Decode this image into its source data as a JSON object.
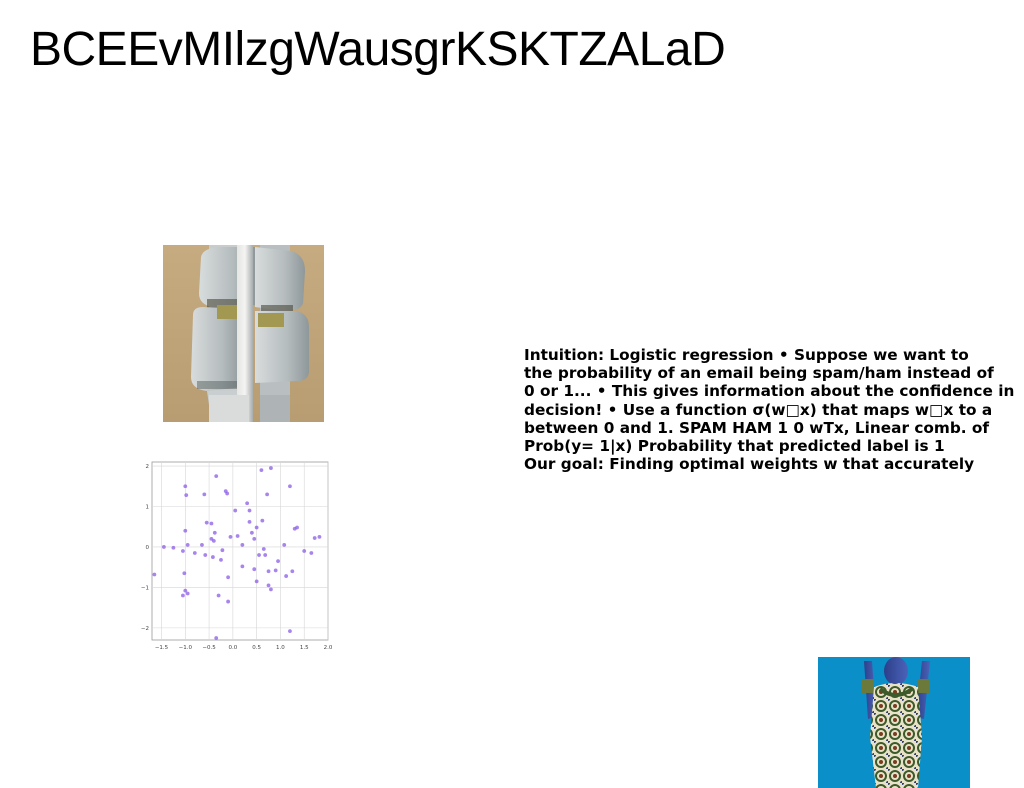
{
  "title": "BCEEvMIlzgWausgrKSKTZALaD",
  "text_block": {
    "lines": [
      "Intuition: Logistic regression • Suppose we want to",
      "the probability of an email being spam/ham instead of",
      "0 or 1... • This gives information about the confidence in",
      "decision! • Use a function σ(w□x) that maps w□x to a",
      "between 0 and 1. SPAM HAM 1 0 wTx, Linear comb. of",
      "Prob(y= 1|x) Probability that predicted label is 1",
      "Our goal: Finding optimal weights w that accurately"
    ]
  },
  "scatter_ticks": {
    "x": [
      "−1.5",
      "−1.0",
      "−0.5",
      "0.0",
      "0.5",
      "1.0",
      "1.5",
      "2.0"
    ],
    "y": [
      "2",
      "1",
      "0",
      "−1",
      "−2"
    ]
  },
  "chart_data": {
    "type": "scatter",
    "xlim": [
      -1.7,
      2.0
    ],
    "ylim": [
      -2.3,
      2.1
    ],
    "grid": true,
    "color": "#8a5ce6",
    "points": [
      [
        -1.65,
        -0.68
      ],
      [
        -1.45,
        0.0
      ],
      [
        -1.25,
        -0.02
      ],
      [
        -1.05,
        -0.1
      ],
      [
        -1.0,
        1.5
      ],
      [
        -0.98,
        1.28
      ],
      [
        -1.0,
        0.4
      ],
      [
        -0.95,
        0.05
      ],
      [
        -1.02,
        -0.65
      ],
      [
        -1.0,
        -1.08
      ],
      [
        -0.95,
        -1.15
      ],
      [
        -1.05,
        -1.2
      ],
      [
        -0.8,
        -0.15
      ],
      [
        -0.65,
        0.05
      ],
      [
        -0.6,
        1.3
      ],
      [
        -0.55,
        0.6
      ],
      [
        -0.58,
        -0.2
      ],
      [
        -0.45,
        0.58
      ],
      [
        -0.45,
        0.2
      ],
      [
        -0.4,
        0.15
      ],
      [
        -0.42,
        -0.25
      ],
      [
        -0.38,
        0.35
      ],
      [
        -0.35,
        1.75
      ],
      [
        -0.3,
        -1.2
      ],
      [
        -0.25,
        -0.32
      ],
      [
        -0.22,
        -0.08
      ],
      [
        -0.15,
        1.38
      ],
      [
        -0.12,
        1.32
      ],
      [
        -0.1,
        -0.75
      ],
      [
        -0.05,
        0.25
      ],
      [
        -0.1,
        -1.35
      ],
      [
        0.1,
        0.27
      ],
      [
        0.05,
        0.9
      ],
      [
        0.2,
        -0.48
      ],
      [
        0.3,
        1.08
      ],
      [
        0.35,
        0.9
      ],
      [
        0.35,
        0.62
      ],
      [
        0.4,
        0.35
      ],
      [
        0.45,
        0.2
      ],
      [
        0.5,
        -0.85
      ],
      [
        0.45,
        -0.55
      ],
      [
        0.5,
        0.48
      ],
      [
        0.6,
        1.9
      ],
      [
        0.62,
        0.65
      ],
      [
        0.65,
        -0.05
      ],
      [
        0.68,
        -0.2
      ],
      [
        0.72,
        1.3
      ],
      [
        0.75,
        -0.95
      ],
      [
        0.8,
        -1.05
      ],
      [
        0.8,
        1.95
      ],
      [
        0.9,
        -0.58
      ],
      [
        0.95,
        -0.35
      ],
      [
        1.08,
        0.05
      ],
      [
        1.12,
        -0.72
      ],
      [
        1.2,
        1.5
      ],
      [
        1.25,
        -0.6
      ],
      [
        1.3,
        0.45
      ],
      [
        1.35,
        0.48
      ],
      [
        1.5,
        -0.1
      ],
      [
        1.65,
        -0.15
      ],
      [
        1.72,
        0.22
      ],
      [
        1.82,
        0.25
      ],
      [
        1.2,
        -2.08
      ],
      [
        -0.35,
        -2.25
      ],
      [
        0.2,
        0.05
      ],
      [
        0.55,
        -0.2
      ],
      [
        0.75,
        -0.6
      ]
    ]
  }
}
